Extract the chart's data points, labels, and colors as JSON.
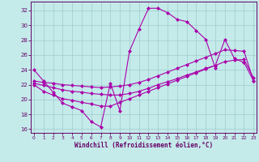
{
  "xlabel": "Windchill (Refroidissement éolien,°C)",
  "background_color": "#c4eaea",
  "grid_color": "#a0cccc",
  "line_color": "#aa00aa",
  "axis_label_color": "#660066",
  "tick_color": "#660066",
  "xlim_min": -0.3,
  "xlim_max": 23.3,
  "ylim_min": 15.5,
  "ylim_max": 33.2,
  "yticks": [
    16,
    18,
    20,
    22,
    24,
    26,
    28,
    30,
    32
  ],
  "xticks": [
    0,
    1,
    2,
    3,
    4,
    5,
    6,
    7,
    8,
    9,
    10,
    11,
    12,
    13,
    14,
    15,
    16,
    17,
    18,
    19,
    20,
    21,
    22,
    23
  ],
  "curve1_x": [
    0,
    1,
    2,
    3,
    4,
    5,
    6,
    7,
    8,
    9,
    10,
    11,
    12,
    13,
    14,
    15,
    16,
    17,
    18,
    19
  ],
  "curve1_y": [
    24.0,
    22.5,
    21.0,
    19.5,
    19.0,
    18.5,
    17.0,
    16.3,
    22.2,
    18.5,
    26.5,
    29.5,
    32.3,
    32.3,
    31.7,
    30.8,
    30.5,
    29.3,
    28.1,
    24.2
  ],
  "curve2_x": [
    0,
    1,
    2,
    3,
    4,
    5,
    6,
    7,
    8,
    9,
    10,
    11,
    12,
    13,
    14,
    15,
    16,
    17,
    18,
    19,
    20,
    21,
    22,
    23
  ],
  "curve2_y": [
    22.5,
    22.3,
    22.2,
    22.0,
    21.9,
    21.8,
    21.7,
    21.6,
    21.7,
    21.8,
    22.0,
    22.3,
    22.7,
    23.2,
    23.7,
    24.2,
    24.7,
    25.2,
    25.7,
    26.2,
    26.7,
    26.6,
    26.5,
    22.5
  ],
  "curve3_x": [
    0,
    1,
    2,
    3,
    4,
    5,
    6,
    7,
    8,
    9,
    10,
    11,
    12,
    13,
    14,
    15,
    16,
    17,
    18,
    19,
    20,
    21,
    22,
    23
  ],
  "curve3_y": [
    22.2,
    21.9,
    21.6,
    21.3,
    21.1,
    21.0,
    20.8,
    20.7,
    20.6,
    20.6,
    20.8,
    21.1,
    21.5,
    22.0,
    22.4,
    22.8,
    23.3,
    23.7,
    24.2,
    24.6,
    25.1,
    25.3,
    25.4,
    22.9
  ],
  "curve4_x": [
    0,
    1,
    2,
    3,
    4,
    5,
    6,
    7,
    8,
    9,
    10,
    11,
    12,
    13,
    14,
    15,
    16,
    17,
    18,
    19,
    20,
    21,
    22,
    23
  ],
  "curve4_y": [
    22.0,
    21.1,
    20.6,
    20.1,
    19.9,
    19.6,
    19.4,
    19.1,
    19.1,
    19.6,
    20.1,
    20.6,
    21.1,
    21.6,
    22.1,
    22.6,
    23.1,
    23.6,
    24.1,
    24.6,
    28.1,
    25.5,
    25.0,
    22.5
  ]
}
